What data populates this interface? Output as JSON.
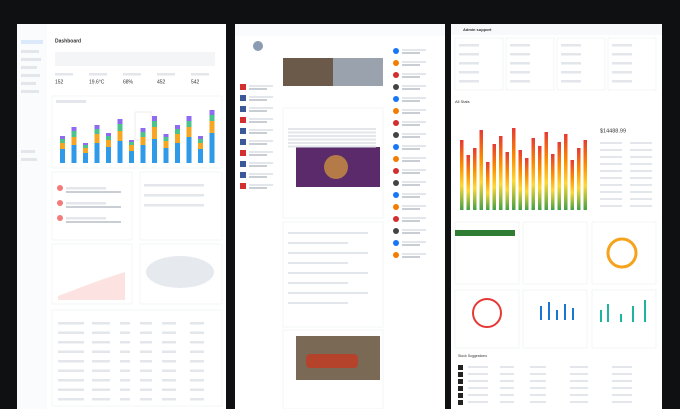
{
  "left": {
    "title": "Dashboard",
    "stats": [
      "152",
      "19.6°C",
      "68%",
      "452",
      "542"
    ],
    "bar_series": [
      {
        "color": "#2f9be8",
        "values": [
          14,
          18,
          10,
          20,
          16,
          22,
          12,
          18,
          24,
          15,
          20,
          26,
          14,
          30
        ]
      },
      {
        "color": "#f5a623",
        "values": [
          6,
          8,
          5,
          9,
          7,
          10,
          6,
          8,
          12,
          7,
          9,
          10,
          6,
          12
        ]
      },
      {
        "color": "#4cc38a",
        "values": [
          4,
          6,
          3,
          5,
          4,
          7,
          3,
          5,
          6,
          4,
          5,
          6,
          4,
          6
        ]
      },
      {
        "color": "#8e6cf0",
        "values": [
          3,
          4,
          2,
          4,
          3,
          5,
          2,
          4,
          5,
          3,
          4,
          5,
          3,
          5
        ]
      }
    ]
  },
  "right": {
    "title": "Admin support",
    "section": "All Stats",
    "total": "$14488.99",
    "subsection": "Stock Suggestions",
    "bars": [
      70,
      55,
      62,
      80,
      48,
      66,
      74,
      58,
      82,
      60,
      52,
      72,
      64,
      78,
      56,
      68,
      76,
      50,
      62,
      70
    ]
  }
}
